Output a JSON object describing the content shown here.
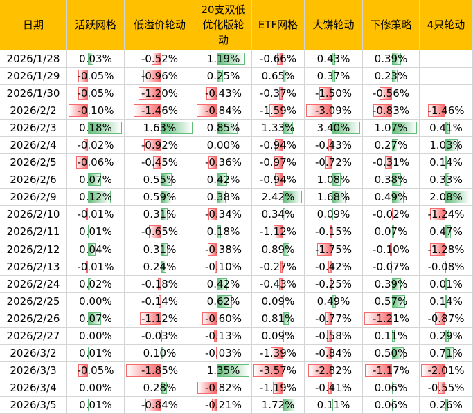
{
  "table": {
    "header": [
      "日期",
      "活跃网格",
      "低溢价轮动",
      "20支双低优化版轮动",
      "ETF网格",
      "大饼轮动",
      "下修策略",
      "4只轮动"
    ],
    "rows": [
      [
        "2026/1/28",
        "0.03%",
        "-0.52%",
        "1.19%",
        "-0.66%",
        "0.43%",
        "0.39%",
        null
      ],
      [
        "2026/1/29",
        "-0.05%",
        "-0.96%",
        "0.25%",
        "0.65%",
        "0.37%",
        "0.23%",
        null
      ],
      [
        "2026/1/30",
        "-0.05%",
        "-1.20%",
        "-0.43%",
        "-0.37%",
        "-1.50%",
        "-0.56%",
        null
      ],
      [
        "2026/2/2",
        "-0.10%",
        "-1.46%",
        "-0.84%",
        "-1.59%",
        "-3.09%",
        "-0.83%",
        "-1.46%"
      ],
      [
        "2026/2/3",
        "0.18%",
        "1.63%",
        "0.85%",
        "1.33%",
        "3.40%",
        "1.07%",
        "0.41%"
      ],
      [
        "2026/2/4",
        "-0.02%",
        "-0.92%",
        "0.00%",
        "-0.94%",
        "-0.43%",
        "0.27%",
        "1.03%"
      ],
      [
        "2026/2/5",
        "-0.06%",
        "-0.45%",
        "-0.36%",
        "-0.97%",
        "-0.72%",
        "-0.31%",
        "0.14%"
      ],
      [
        "2026/2/6",
        "0.07%",
        "0.55%",
        "0.42%",
        "-0.94%",
        "1.08%",
        "0.38%",
        "0.33%"
      ],
      [
        "2026/2/9",
        "0.12%",
        "0.59%",
        "0.38%",
        "2.42%",
        "1.68%",
        "0.49%",
        "2.08%"
      ],
      [
        "2026/2/10",
        "-0.01%",
        "0.31%",
        "-0.34%",
        "0.34%",
        "0.09%",
        "-0.02%",
        "-1.24%"
      ],
      [
        "2026/2/11",
        "0.01%",
        "-0.65%",
        "0.18%",
        "-1.12%",
        "-0.15%",
        "0.07%",
        "0.47%"
      ],
      [
        "2026/2/12",
        "0.04%",
        "0.31%",
        "-0.38%",
        "0.89%",
        "-1.75%",
        "-0.10%",
        "-1.28%"
      ],
      [
        "2026/2/13",
        "-0.01%",
        "0.24%",
        "-0.10%",
        "-0.27%",
        "-0.42%",
        "-0.07%",
        "-0.08%"
      ],
      [
        "2026/2/24",
        "0.02%",
        "-0.18%",
        "0.42%",
        "-0.43%",
        "-0.25%",
        "0.39%",
        "0.01%"
      ],
      [
        "2026/2/25",
        "0.00%",
        "-0.14%",
        "0.62%",
        "0.09%",
        "0.49%",
        "0.57%",
        "0.14%"
      ],
      [
        "2026/2/26",
        "0.07%",
        "-1.12%",
        "-0.60%",
        "0.81%",
        "-0.77%",
        "-1.21%",
        "-0.87%"
      ],
      [
        "2026/2/27",
        "0.00%",
        "-0.03%",
        "-0.13%",
        "0.09%",
        "-0.58%",
        "0.11%",
        "0.29%"
      ],
      [
        "2026/3/2",
        "0.01%",
        "0.10%",
        "-0.03%",
        "-1.39%",
        "-0.84%",
        "0.50%",
        "0.71%"
      ],
      [
        "2026/3/3",
        "-0.05%",
        "-1.85%",
        "1.35%",
        "-3.57%",
        "-2.82%",
        "-1.17%",
        "-2.01%"
      ],
      [
        "2026/3/4",
        "0.00%",
        "0.28%",
        "-0.82%",
        "-1.19%",
        "-0.41%",
        "0.06%",
        "-0.55%"
      ],
      [
        "2026/3/5",
        "0.01%",
        "-0.84%",
        "-0.21%",
        "1.72%",
        "0.11%",
        "0.06%",
        "0.26%"
      ]
    ]
  }
}
